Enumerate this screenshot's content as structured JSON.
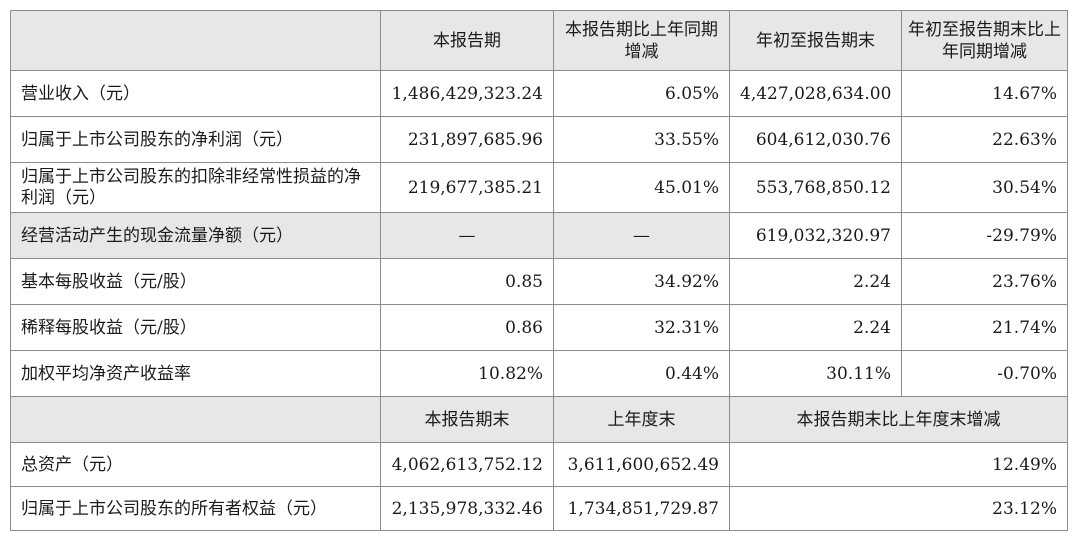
{
  "header1": [
    "本报告期",
    "本报告期比上年同期增减",
    "年初至报告期末",
    "年初至报告期末比上年同期增减"
  ],
  "rows": [
    {
      "label": "营业收入（元）",
      "c1": "1,486,429,323.24",
      "c2": "6.05%",
      "c3": "4,427,028,634.00",
      "c4": "14.67%"
    },
    {
      "label": "归属于上市公司股东的净利润（元）",
      "c1": "231,897,685.96",
      "c2": "33.55%",
      "c3": "604,612,030.76",
      "c4": "22.63%"
    },
    {
      "label": "归属于上市公司股东的扣除非经常性损益的净利润（元）",
      "c1": "219,677,385.21",
      "c2": "45.01%",
      "c3": "553,768,850.12",
      "c4": "30.54%"
    },
    {
      "label": "经营活动产生的现金流量净额（元）",
      "c1": "—",
      "c2": "—",
      "c3": "619,032,320.97",
      "c4": "-29.79%"
    },
    {
      "label": "基本每股收益（元/股）",
      "c1": "0.85",
      "c2": "34.92%",
      "c3": "2.24",
      "c4": "23.76%"
    },
    {
      "label": "稀释每股收益（元/股）",
      "c1": "0.86",
      "c2": "32.31%",
      "c3": "2.24",
      "c4": "21.74%"
    },
    {
      "label": "加权平均净资产收益率",
      "c1": "10.82%",
      "c2": "0.44%",
      "c3": "30.11%",
      "c4": "-0.70%"
    }
  ],
  "header2": [
    "本报告期末",
    "上年度末",
    "本报告期末比上年度末增减"
  ],
  "rows2": [
    {
      "label": "总资产（元）",
      "c1": "4,062,613,752.12",
      "c2": "3,611,600,652.49",
      "c3": "12.49%"
    },
    {
      "label": "归属于上市公司股东的所有者权益（元）",
      "c1": "2,135,978,332.46",
      "c2": "1,734,851,729.87",
      "c3": "23.12%"
    }
  ]
}
